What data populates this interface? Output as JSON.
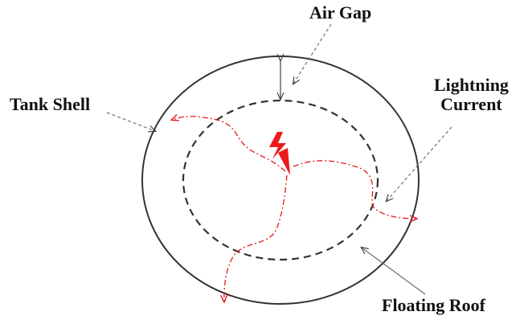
{
  "labels": {
    "air_gap": "Air Gap",
    "tank_shell": "Tank Shell",
    "lightning_current_line1": "Lightning",
    "lightning_current_line2": "Current",
    "floating_roof": "Floating Roof"
  },
  "colors": {
    "shell": "#333333",
    "roof": "#333333",
    "current": "#e31b1b",
    "arrow": "#666666",
    "text": "#111111"
  }
}
